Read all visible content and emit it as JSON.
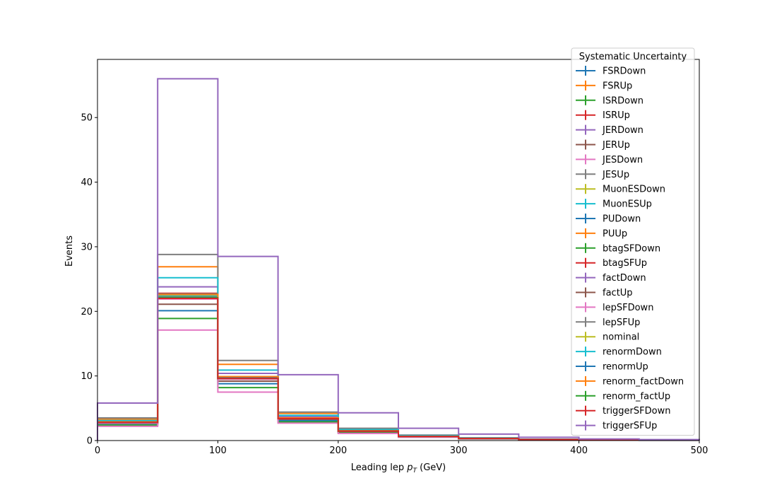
{
  "chart_data": {
    "type": "line",
    "style": "step-histogram",
    "xlabel": "Leading lep",
    "xlabel_var": "p",
    "xlabel_sub": "T",
    "xlabel_unit": "(GeV)",
    "ylabel": "Events",
    "xlim": [
      0,
      500
    ],
    "ylim": [
      0,
      59
    ],
    "xticks": [
      0,
      100,
      200,
      300,
      400,
      500
    ],
    "yticks": [
      0,
      10,
      20,
      30,
      40,
      50
    ],
    "grid": false,
    "legend_title": "Systematic Uncertainty",
    "legend_position": "top-right",
    "bin_edges": [
      0,
      50,
      100,
      150,
      200,
      250,
      300,
      350,
      400,
      450,
      500
    ],
    "series": [
      {
        "name": "FSRDown",
        "color": "#1f77b4",
        "values": [
          2.6,
          20.1,
          8.8,
          3.1,
          1.3,
          0.6,
          0.3,
          0.15,
          0.08,
          0.05
        ]
      },
      {
        "name": "FSRUp",
        "color": "#ff7f0e",
        "values": [
          3.3,
          26.9,
          11.8,
          4.2,
          1.8,
          0.8,
          0.4,
          0.2,
          0.1,
          0.06
        ]
      },
      {
        "name": "ISRDown",
        "color": "#2ca02c",
        "values": [
          2.4,
          18.9,
          8.2,
          2.9,
          1.2,
          0.55,
          0.28,
          0.14,
          0.07,
          0.04
        ]
      },
      {
        "name": "ISRUp",
        "color": "#d62728",
        "values": [
          2.9,
          22.8,
          9.9,
          3.5,
          1.5,
          0.65,
          0.33,
          0.17,
          0.09,
          0.05
        ]
      },
      {
        "name": "JERDown",
        "color": "#9467bd",
        "values": [
          3.0,
          23.8,
          10.4,
          3.7,
          1.6,
          0.7,
          0.35,
          0.18,
          0.09,
          0.05
        ]
      },
      {
        "name": "JERUp",
        "color": "#8c564b",
        "values": [
          2.7,
          21.1,
          9.2,
          3.3,
          1.4,
          0.6,
          0.3,
          0.16,
          0.08,
          0.05
        ]
      },
      {
        "name": "JESDown",
        "color": "#e377c2",
        "values": [
          2.2,
          17.1,
          7.5,
          2.7,
          1.1,
          0.5,
          0.25,
          0.13,
          0.07,
          0.04
        ]
      },
      {
        "name": "JESUp",
        "color": "#7f7f7f",
        "values": [
          3.5,
          28.8,
          12.4,
          4.4,
          1.9,
          0.85,
          0.42,
          0.21,
          0.11,
          0.06
        ]
      },
      {
        "name": "MuonESDown",
        "color": "#bcbd22",
        "values": [
          2.8,
          22.0,
          9.6,
          3.4,
          1.45,
          0.63,
          0.31,
          0.16,
          0.08,
          0.05
        ]
      },
      {
        "name": "MuonESUp",
        "color": "#17becf",
        "values": [
          3.1,
          25.2,
          10.9,
          3.9,
          1.7,
          0.75,
          0.37,
          0.19,
          0.1,
          0.05
        ]
      },
      {
        "name": "PUDown",
        "color": "#1f77b4",
        "values": [
          2.8,
          22.2,
          9.7,
          3.5,
          1.45,
          0.64,
          0.32,
          0.16,
          0.08,
          0.05
        ]
      },
      {
        "name": "PUUp",
        "color": "#ff7f0e",
        "values": [
          2.9,
          22.5,
          9.8,
          3.5,
          1.5,
          0.65,
          0.32,
          0.16,
          0.08,
          0.05
        ]
      },
      {
        "name": "btagSFDown",
        "color": "#2ca02c",
        "values": [
          2.8,
          22.1,
          9.6,
          3.4,
          1.45,
          0.63,
          0.31,
          0.16,
          0.08,
          0.05
        ]
      },
      {
        "name": "btagSFUp",
        "color": "#d62728",
        "values": [
          2.9,
          22.6,
          9.9,
          3.5,
          1.5,
          0.65,
          0.33,
          0.17,
          0.09,
          0.05
        ]
      },
      {
        "name": "factDown",
        "color": "#9467bd",
        "values": [
          2.9,
          22.4,
          9.8,
          3.5,
          1.48,
          0.64,
          0.32,
          0.16,
          0.08,
          0.05
        ]
      },
      {
        "name": "factUp",
        "color": "#8c564b",
        "values": [
          2.8,
          22.3,
          9.7,
          3.5,
          1.46,
          0.64,
          0.32,
          0.16,
          0.08,
          0.05
        ]
      },
      {
        "name": "lepSFDown",
        "color": "#e377c2",
        "values": [
          2.7,
          21.9,
          9.5,
          3.4,
          1.44,
          0.62,
          0.31,
          0.15,
          0.08,
          0.05
        ]
      },
      {
        "name": "lepSFUp",
        "color": "#7f7f7f",
        "values": [
          2.9,
          22.7,
          9.9,
          3.5,
          1.5,
          0.66,
          0.33,
          0.17,
          0.09,
          0.05
        ]
      },
      {
        "name": "nominal",
        "color": "#bcbd22",
        "values": [
          2.8,
          22.3,
          9.7,
          3.5,
          1.47,
          0.64,
          0.32,
          0.16,
          0.08,
          0.05
        ]
      },
      {
        "name": "renormDown",
        "color": "#17becf",
        "values": [
          2.9,
          22.5,
          9.8,
          3.5,
          1.49,
          0.65,
          0.32,
          0.16,
          0.08,
          0.05
        ]
      },
      {
        "name": "renormUp",
        "color": "#1f77b4",
        "values": [
          2.8,
          22.2,
          9.7,
          3.5,
          1.46,
          0.64,
          0.32,
          0.16,
          0.08,
          0.05
        ]
      },
      {
        "name": "renorm_factDown",
        "color": "#ff7f0e",
        "values": [
          2.9,
          22.6,
          9.9,
          3.5,
          1.5,
          0.65,
          0.33,
          0.17,
          0.09,
          0.05
        ]
      },
      {
        "name": "renorm_factUp",
        "color": "#2ca02c",
        "values": [
          2.8,
          22.1,
          9.6,
          3.4,
          1.45,
          0.63,
          0.31,
          0.16,
          0.08,
          0.05
        ]
      },
      {
        "name": "triggerSFDown",
        "color": "#d62728",
        "values": [
          2.8,
          22.0,
          9.6,
          3.4,
          1.45,
          0.63,
          0.31,
          0.16,
          0.08,
          0.05
        ]
      },
      {
        "name": "triggerSFUp",
        "color": "#9467bd",
        "values": [
          5.8,
          56.0,
          28.5,
          10.2,
          4.3,
          1.9,
          1.0,
          0.5,
          0.25,
          0.15
        ]
      }
    ]
  }
}
